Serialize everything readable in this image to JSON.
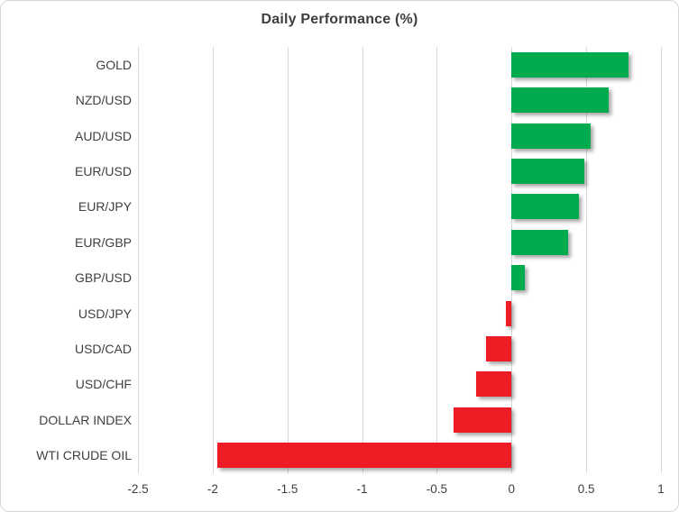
{
  "chart_data": {
    "type": "bar",
    "orientation": "horizontal",
    "title": "Daily Performance (%)",
    "xlabel": "",
    "ylabel": "",
    "categories": [
      "GOLD",
      "NZD/USD",
      "AUD/USD",
      "EUR/USD",
      "EUR/JPY",
      "EUR/GBP",
      "GBP/USD",
      "USD/JPY",
      "USD/CAD",
      "USD/CHF",
      "DOLLAR INDEX",
      "WTI CRUDE OIL"
    ],
    "values": [
      0.78,
      0.65,
      0.53,
      0.49,
      0.45,
      0.38,
      0.09,
      -0.04,
      -0.17,
      -0.24,
      -0.39,
      -1.97
    ],
    "xlim": [
      -2.5,
      1
    ],
    "xticks": [
      -2.5,
      -2,
      -1.5,
      -1,
      -0.5,
      0,
      0.5,
      1
    ],
    "xtick_labels": [
      "-2.5",
      "-2",
      "-1.5",
      "-1",
      "-0.5",
      "0",
      "0.5",
      "1"
    ],
    "grid": "vertical",
    "legend": "none",
    "positive_color": "#00ab4e",
    "negative_color": "#ee1c25"
  },
  "colors": {
    "gridline": "#d9d9d9",
    "border": "#d7d7d7",
    "title_text": "#3f3f3f",
    "label_text": "#404040",
    "background": "#ffffff"
  }
}
